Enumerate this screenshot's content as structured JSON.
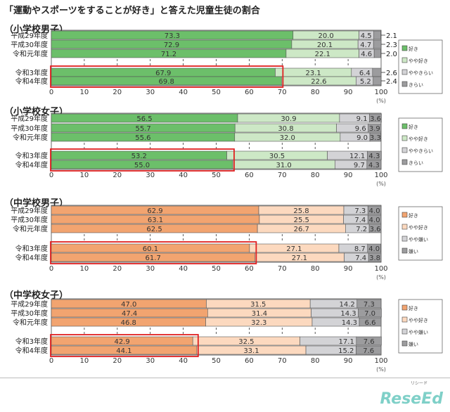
{
  "title": "「運動やスポーツをすることが好き」と答えた児童生徒の割合",
  "logo": "ReseEd",
  "logo_sub": "リシード",
  "chart_data": [
    {
      "type": "bar",
      "orientation": "horizontal",
      "stacked": true,
      "title": "（小学校男子）",
      "categories": [
        "平成29年度",
        "平成30年度",
        "令和元年度",
        "令和3年度",
        "令和4年度"
      ],
      "highlighted_categories": [
        "令和3年度",
        "令和4年度"
      ],
      "series": [
        {
          "name": "好き",
          "color": "#6cbf6a",
          "values": [
            73.3,
            72.9,
            71.2,
            67.9,
            69.8
          ]
        },
        {
          "name": "やや好き",
          "color": "#cde8c6",
          "values": [
            20.0,
            20.1,
            22.1,
            23.1,
            22.6
          ]
        },
        {
          "name": "ややきらい",
          "color": "#d3d3d6",
          "values": [
            4.5,
            4.7,
            4.6,
            6.4,
            5.2
          ]
        },
        {
          "name": "きらい",
          "color": "#9c9c9e",
          "values": [
            2.1,
            2.3,
            2.0,
            2.6,
            2.4
          ]
        }
      ],
      "xlim": [
        0,
        100
      ],
      "xticks": [
        0,
        10,
        20,
        30,
        40,
        50,
        60,
        70,
        80,
        90,
        100
      ],
      "xunit": "(%)",
      "legend": "right"
    },
    {
      "type": "bar",
      "orientation": "horizontal",
      "stacked": true,
      "title": "（小学校女子）",
      "categories": [
        "平成29年度",
        "平成30年度",
        "令和元年度",
        "令和3年度",
        "令和4年度"
      ],
      "highlighted_categories": [
        "令和3年度",
        "令和4年度"
      ],
      "series": [
        {
          "name": "好き",
          "color": "#6cbf6a",
          "values": [
            56.5,
            55.7,
            55.6,
            53.2,
            55.0
          ]
        },
        {
          "name": "やや好き",
          "color": "#cde8c6",
          "values": [
            30.9,
            30.8,
            32.0,
            30.5,
            31.0
          ]
        },
        {
          "name": "ややきらい",
          "color": "#d3d3d6",
          "values": [
            9.1,
            9.6,
            9.0,
            12.1,
            9.7
          ]
        },
        {
          "name": "きらい",
          "color": "#9c9c9e",
          "values": [
            3.6,
            3.9,
            3.3,
            4.3,
            4.3
          ]
        }
      ],
      "xlim": [
        0,
        100
      ],
      "xticks": [
        0,
        10,
        20,
        30,
        40,
        50,
        60,
        70,
        80,
        90,
        100
      ],
      "xunit": "(%)",
      "legend": "right"
    },
    {
      "type": "bar",
      "orientation": "horizontal",
      "stacked": true,
      "title": "（中学校男子）",
      "categories": [
        "平成29年度",
        "平成30年度",
        "令和元年度",
        "令和3年度",
        "令和4年度"
      ],
      "highlighted_categories": [
        "令和3年度",
        "令和4年度"
      ],
      "series": [
        {
          "name": "好き",
          "color": "#f2a470",
          "values": [
            62.9,
            63.1,
            62.5,
            60.1,
            61.7
          ]
        },
        {
          "name": "やや好き",
          "color": "#fcd9bf",
          "values": [
            25.8,
            25.5,
            26.7,
            27.1,
            27.1
          ]
        },
        {
          "name": "やや嫌い",
          "color": "#d3d3d6",
          "values": [
            7.3,
            7.4,
            7.2,
            8.7,
            7.4
          ]
        },
        {
          "name": "嫌い",
          "color": "#9c9c9e",
          "values": [
            4.0,
            4.0,
            3.6,
            4.0,
            3.8
          ]
        }
      ],
      "xlim": [
        0,
        100
      ],
      "xticks": [
        0,
        10,
        20,
        30,
        40,
        50,
        60,
        70,
        80,
        90,
        100
      ],
      "xunit": "(%)",
      "legend": "right"
    },
    {
      "type": "bar",
      "orientation": "horizontal",
      "stacked": true,
      "title": "（中学校女子）",
      "categories": [
        "平成29年度",
        "平成30年度",
        "令和元年度",
        "令和3年度",
        "令和4年度"
      ],
      "highlighted_categories": [
        "令和3年度",
        "令和4年度"
      ],
      "series": [
        {
          "name": "好き",
          "color": "#f2a470",
          "values": [
            47.0,
            47.4,
            46.8,
            42.9,
            44.1
          ]
        },
        {
          "name": "やや好き",
          "color": "#fcd9bf",
          "values": [
            31.5,
            31.4,
            32.3,
            32.5,
            33.1
          ]
        },
        {
          "name": "やや嫌い",
          "color": "#d3d3d6",
          "values": [
            14.2,
            14.3,
            14.3,
            17.1,
            15.2
          ]
        },
        {
          "name": "嫌い",
          "color": "#9c9c9e",
          "values": [
            7.3,
            7.0,
            6.6,
            7.6,
            7.6
          ]
        }
      ],
      "xlim": [
        0,
        100
      ],
      "xticks": [
        0,
        10,
        20,
        30,
        40,
        50,
        60,
        70,
        80,
        90,
        100
      ],
      "xunit": "(%)",
      "legend": "right"
    }
  ]
}
